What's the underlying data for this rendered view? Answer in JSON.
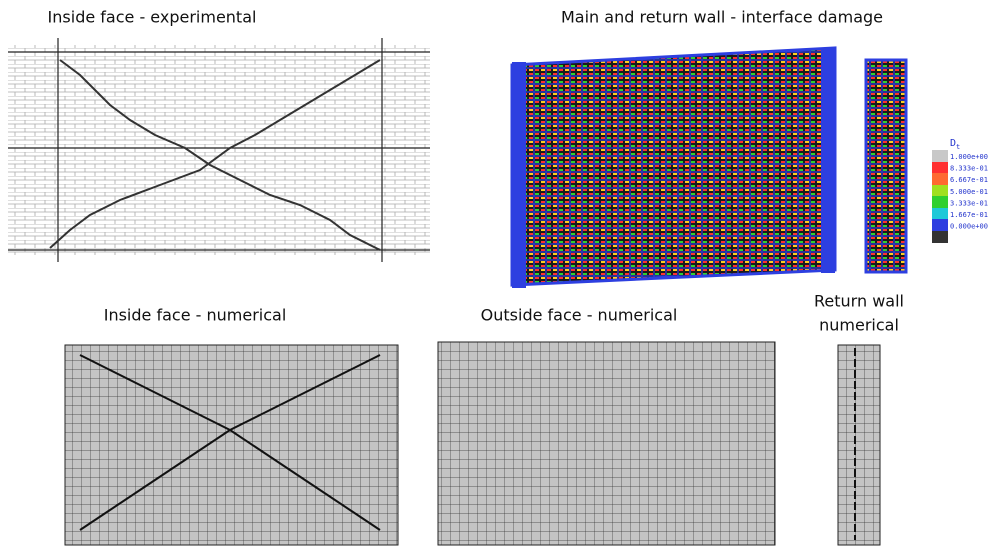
{
  "panels": [
    {
      "title": "Inside face - experimental"
    },
    {
      "title": "Main and return wall - interface damage"
    },
    {
      "title": "Inside face - numerical"
    },
    {
      "title": "Outside face - numerical"
    },
    {
      "title_lines": [
        "Return wall",
        "numerical"
      ]
    }
  ],
  "legend": {
    "title": "D",
    "subscript": "t",
    "labels": [
      "1.000e+00",
      "8.333e-01",
      "6.667e-01",
      "5.000e-01",
      "3.333e-01",
      "1.667e-01",
      "0.000e+00"
    ]
  }
}
